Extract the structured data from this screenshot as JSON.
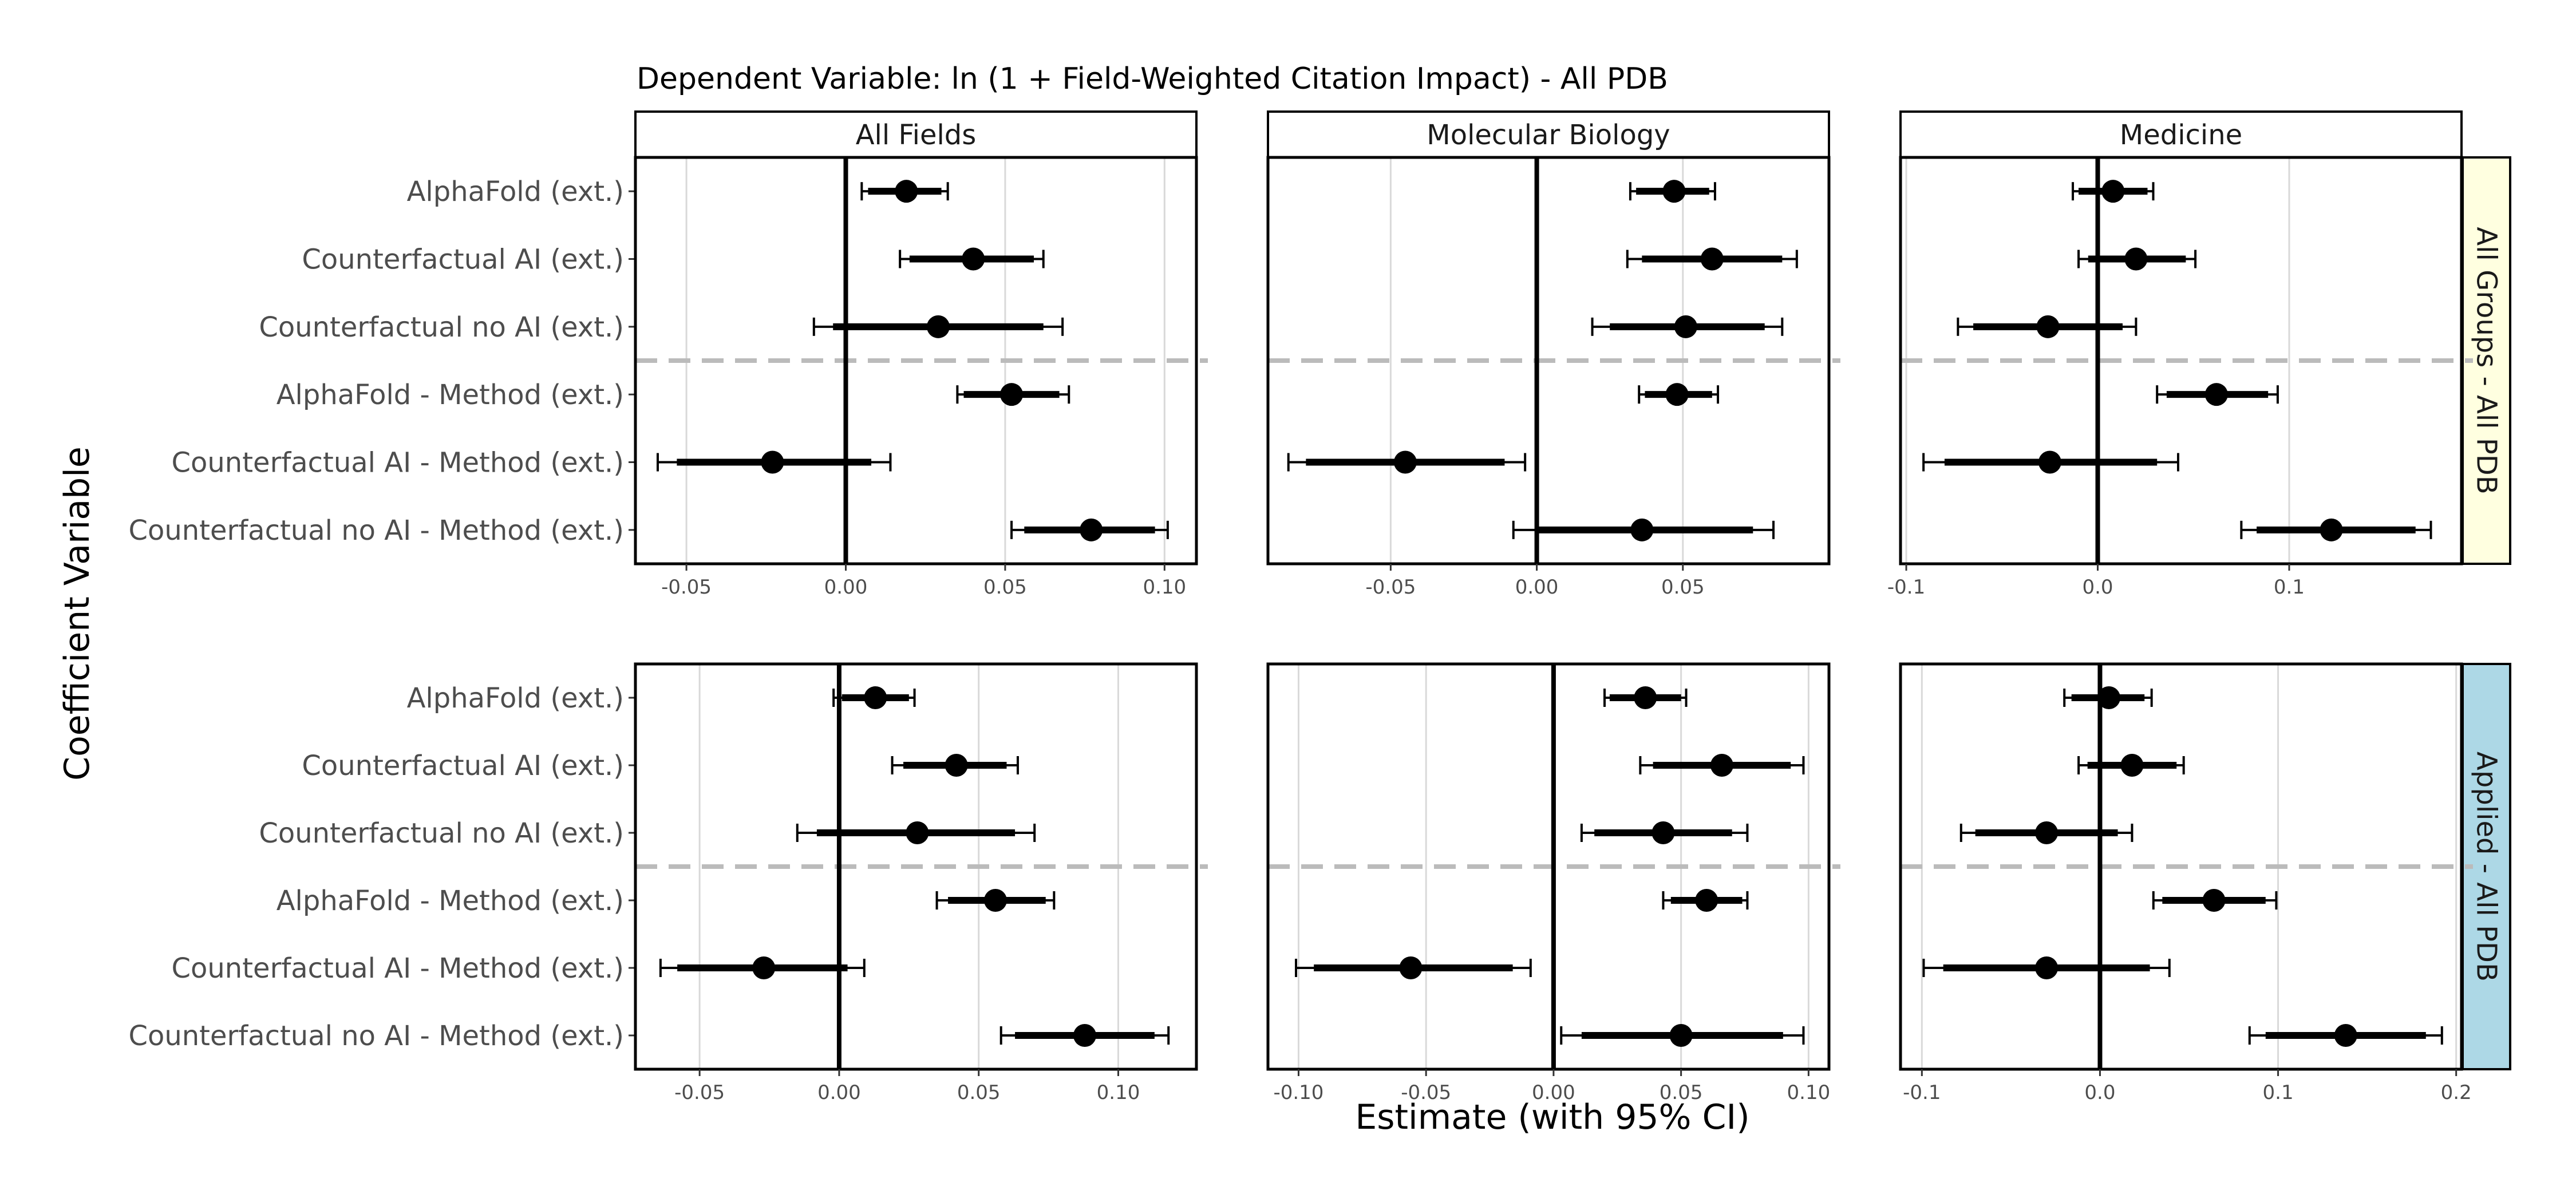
{
  "title": "Dependent Variable: ln (1 + Field-Weighted Citation Impact)  -  All PDB",
  "ylabel": "Coefficient Variable",
  "xlabel": "Estimate (with 95% CI)",
  "colors": {
    "point": "#000000",
    "zero_line": "#000000",
    "grid": "#d9d9d9",
    "divider": "#bbbbbb",
    "strip_bg": "#ffffff",
    "row_strips": [
      "#ffffe0",
      "#add8e6"
    ],
    "axis_text": "#4d4d4d"
  },
  "chart_data": {
    "type": "scatter",
    "subtype": "coefficient plot with 95% confidence intervals, faceted grid",
    "columns": [
      "All Fields",
      "Molecular Biology",
      "Medicine"
    ],
    "rows": [
      "All Groups - All PDB",
      "Applied - All PDB"
    ],
    "categories": [
      "AlphaFold (ext.)",
      "Counterfactual AI (ext.)",
      "Counterfactual no AI (ext.)",
      "AlphaFold - Method (ext.)",
      "Counterfactual AI - Method (ext.)",
      "Counterfactual no AI - Method (ext.)"
    ],
    "divider_after_category": 3,
    "panels": [
      {
        "row": 0,
        "col": 0,
        "xlim": [
          -0.066,
          0.11
        ],
        "ticks": [
          -0.05,
          0.0,
          0.05,
          0.1
        ],
        "tick_labels": [
          "-0.05",
          "0.00",
          "0.05",
          "0.10"
        ],
        "estimate": [
          0.019,
          0.04,
          0.029,
          0.052,
          -0.023,
          0.077
        ],
        "ci95_low": [
          0.005,
          0.017,
          -0.01,
          0.035,
          -0.059,
          0.052
        ],
        "ci95_high": [
          0.032,
          0.062,
          0.068,
          0.07,
          0.014,
          0.101
        ],
        "ci90_low": [
          0.007,
          0.02,
          -0.004,
          0.037,
          -0.053,
          0.056
        ],
        "ci90_high": [
          0.03,
          0.059,
          0.062,
          0.067,
          0.008,
          0.097
        ]
      },
      {
        "row": 0,
        "col": 1,
        "xlim": [
          -0.092,
          0.1
        ],
        "ticks": [
          -0.05,
          0.0,
          0.05
        ],
        "tick_labels": [
          "-0.05",
          "0.00",
          "0.05"
        ],
        "estimate": [
          0.047,
          0.06,
          0.051,
          0.048,
          -0.045,
          0.036
        ],
        "ci95_low": [
          0.032,
          0.031,
          0.019,
          0.035,
          -0.085,
          -0.008
        ],
        "ci95_high": [
          0.061,
          0.089,
          0.084,
          0.062,
          -0.004,
          0.081
        ],
        "ci90_low": [
          0.034,
          0.036,
          0.025,
          0.037,
          -0.079,
          0.0
        ],
        "ci90_high": [
          0.059,
          0.084,
          0.078,
          0.06,
          -0.011,
          0.074
        ]
      },
      {
        "row": 0,
        "col": 2,
        "xlim": [
          -0.103,
          0.19
        ],
        "ticks": [
          -0.1,
          0.0,
          0.1
        ],
        "tick_labels": [
          "-0.1",
          "0.0",
          "0.1"
        ],
        "estimate": [
          0.008,
          0.02,
          -0.026,
          0.062,
          -0.025,
          0.122
        ],
        "ci95_low": [
          -0.013,
          -0.01,
          -0.073,
          0.031,
          -0.091,
          0.075
        ],
        "ci95_high": [
          0.029,
          0.051,
          0.02,
          0.094,
          0.042,
          0.174
        ],
        "ci90_low": [
          -0.01,
          -0.005,
          -0.065,
          0.036,
          -0.08,
          0.083
        ],
        "ci90_high": [
          0.026,
          0.046,
          0.013,
          0.089,
          0.031,
          0.166
        ]
      },
      {
        "row": 1,
        "col": 0,
        "xlim": [
          -0.073,
          0.128
        ],
        "ticks": [
          -0.05,
          0.0,
          0.05,
          0.1
        ],
        "tick_labels": [
          "-0.05",
          "0.00",
          "0.05",
          "0.10"
        ],
        "estimate": [
          0.013,
          0.042,
          0.028,
          0.056,
          -0.027,
          0.088
        ],
        "ci95_low": [
          -0.002,
          0.019,
          -0.015,
          0.035,
          -0.064,
          0.058
        ],
        "ci95_high": [
          0.027,
          0.064,
          0.07,
          0.077,
          0.009,
          0.118
        ],
        "ci90_low": [
          0.001,
          0.023,
          -0.008,
          0.039,
          -0.058,
          0.063
        ],
        "ci90_high": [
          0.025,
          0.06,
          0.063,
          0.074,
          0.003,
          0.113
        ]
      },
      {
        "row": 1,
        "col": 1,
        "xlim": [
          -0.112,
          0.108
        ],
        "ticks": [
          -0.1,
          -0.05,
          0.0,
          0.05,
          0.1
        ],
        "tick_labels": [
          "-0.10",
          "-0.05",
          "0.00",
          "0.05",
          "0.10"
        ],
        "estimate": [
          0.036,
          0.066,
          0.043,
          0.06,
          -0.056,
          0.05
        ],
        "ci95_low": [
          0.02,
          0.034,
          0.011,
          0.043,
          -0.101,
          0.003
        ],
        "ci95_high": [
          0.052,
          0.098,
          0.076,
          0.076,
          -0.009,
          0.098
        ],
        "ci90_low": [
          0.022,
          0.039,
          0.016,
          0.046,
          -0.094,
          0.011
        ],
        "ci90_high": [
          0.05,
          0.093,
          0.07,
          0.074,
          -0.016,
          0.09
        ]
      },
      {
        "row": 1,
        "col": 2,
        "xlim": [
          -0.112,
          0.203
        ],
        "ticks": [
          -0.1,
          0.0,
          0.1,
          0.2
        ],
        "tick_labels": [
          "-0.1",
          "0.0",
          "0.1",
          "0.2"
        ],
        "estimate": [
          0.005,
          0.018,
          -0.03,
          0.064,
          -0.03,
          0.138
        ],
        "ci95_low": [
          -0.02,
          -0.012,
          -0.078,
          0.03,
          -0.099,
          0.084
        ],
        "ci95_high": [
          0.029,
          0.047,
          0.018,
          0.099,
          0.039,
          0.192
        ],
        "ci90_low": [
          -0.016,
          -0.007,
          -0.07,
          0.035,
          -0.088,
          0.093
        ],
        "ci90_high": [
          0.025,
          0.043,
          0.01,
          0.093,
          0.028,
          0.183
        ]
      }
    ]
  }
}
